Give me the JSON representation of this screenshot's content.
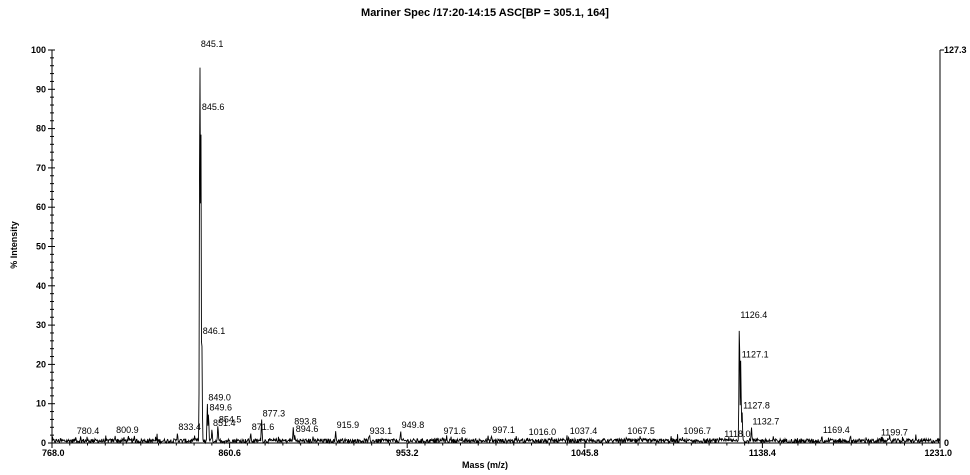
{
  "chart_data": {
    "type": "line",
    "title": "Mariner Spec /17:20-14:15 ASC[BP = 305.1, 164]",
    "xlabel": "Mass (m/z)",
    "ylabel": "% Intensity",
    "xlim": [
      768.0,
      1231.0
    ],
    "ylim": [
      0,
      100
    ],
    "x_ticks": [
      "768.0",
      "860.6",
      "953.2",
      "1045.8",
      "1138.4",
      "1231.0"
    ],
    "y_ticks": [
      "0",
      "10",
      "20",
      "30",
      "40",
      "50",
      "60",
      "70",
      "80",
      "90",
      "100"
    ],
    "right_axis": {
      "max_label": "127.3",
      "min_label": "0"
    },
    "grid": false,
    "peaks": [
      {
        "x": 780.4,
        "y": 1.5,
        "label": "780.4"
      },
      {
        "x": 800.9,
        "y": 1.8,
        "label": "800.9"
      },
      {
        "x": 833.4,
        "y": 2.5,
        "label": "833.4"
      },
      {
        "x": 845.1,
        "y": 100,
        "label": "845.1"
      },
      {
        "x": 845.6,
        "y": 84,
        "label": "845.6"
      },
      {
        "x": 846.1,
        "y": 27,
        "label": "846.1"
      },
      {
        "x": 849.0,
        "y": 10,
        "label": "849.0"
      },
      {
        "x": 849.6,
        "y": 7.5,
        "label": "849.6"
      },
      {
        "x": 851.4,
        "y": 3.5,
        "label": "851.4"
      },
      {
        "x": 854.5,
        "y": 4.5,
        "label": "854.5"
      },
      {
        "x": 871.6,
        "y": 2.5,
        "label": "871.6"
      },
      {
        "x": 877.3,
        "y": 6,
        "label": "877.3"
      },
      {
        "x": 893.8,
        "y": 4,
        "label": "893.8"
      },
      {
        "x": 894.6,
        "y": 2,
        "label": "894.6"
      },
      {
        "x": 915.9,
        "y": 3,
        "label": "915.9"
      },
      {
        "x": 933.1,
        "y": 1.5,
        "label": "933.1"
      },
      {
        "x": 949.8,
        "y": 3,
        "label": "949.8"
      },
      {
        "x": 971.6,
        "y": 1.5,
        "label": "971.6"
      },
      {
        "x": 997.1,
        "y": 1.8,
        "label": "997.1"
      },
      {
        "x": 1016.0,
        "y": 1.3,
        "label": "1016.0"
      },
      {
        "x": 1037.4,
        "y": 1.5,
        "label": "1037.4"
      },
      {
        "x": 1067.5,
        "y": 1.5,
        "label": "1067.5"
      },
      {
        "x": 1096.7,
        "y": 1.5,
        "label": "1096.7"
      },
      {
        "x": 1118.0,
        "y": 0.8,
        "label": "1118.0"
      },
      {
        "x": 1126.4,
        "y": 31,
        "label": "1126.4"
      },
      {
        "x": 1127.1,
        "y": 21,
        "label": "1127.1"
      },
      {
        "x": 1127.8,
        "y": 8,
        "label": "1127.8"
      },
      {
        "x": 1132.7,
        "y": 4,
        "label": "1132.7"
      },
      {
        "x": 1169.4,
        "y": 1.8,
        "label": "1169.4"
      },
      {
        "x": 1199.7,
        "y": 1.2,
        "label": "1199.7"
      }
    ]
  }
}
